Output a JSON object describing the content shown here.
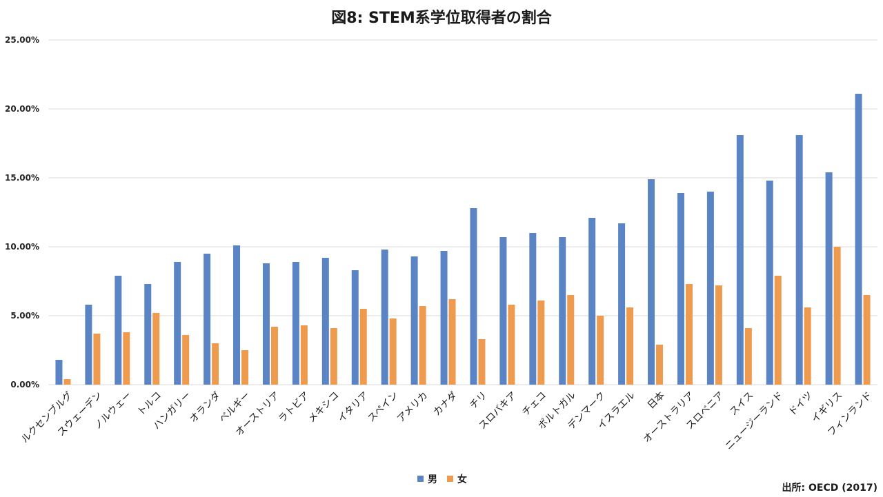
{
  "chart_data": {
    "type": "bar",
    "title": "図8: STEM系学位取得者の割合",
    "xlabel": "",
    "ylabel": "",
    "ylim": [
      0,
      25
    ],
    "yticks": [
      "0.00%",
      "5.00%",
      "10.00%",
      "15.00%",
      "20.00%",
      "25.00%"
    ],
    "grid": true,
    "legend_position": "bottom",
    "categories": [
      "ルクセンブルグ",
      "スウェーデン",
      "ノルウェー",
      "トルコ",
      "ハンガリー",
      "オランダ",
      "ベルギー",
      "オーストリア",
      "ラトビア",
      "メキシコ",
      "イタリア",
      "スペイン",
      "アメリカ",
      "カナダ",
      "チリ",
      "スロバキア",
      "チェコ",
      "ポルトガル",
      "デンマーク",
      "イスラエル",
      "日本",
      "オーストラリア",
      "スロベニア",
      "スイス",
      "ニュージーランド",
      "ドイツ",
      "イギリス",
      "フィンランド"
    ],
    "series": [
      {
        "name": "男",
        "color": "#5B84C4",
        "values": [
          1.8,
          5.8,
          7.9,
          7.3,
          8.9,
          9.5,
          10.1,
          8.8,
          8.9,
          9.2,
          8.3,
          9.8,
          9.3,
          9.7,
          12.8,
          10.7,
          11.0,
          10.7,
          12.1,
          11.7,
          14.9,
          13.9,
          14.0,
          18.1,
          14.8,
          18.1,
          15.4,
          21.1
        ]
      },
      {
        "name": "女",
        "color": "#EE9A4F",
        "values": [
          0.4,
          3.7,
          3.8,
          5.2,
          3.6,
          3.0,
          2.5,
          4.2,
          4.3,
          4.1,
          5.5,
          4.8,
          5.7,
          6.2,
          3.3,
          5.8,
          6.1,
          6.5,
          5.0,
          5.6,
          2.9,
          7.3,
          7.2,
          4.1,
          7.9,
          5.6,
          10.0,
          6.5
        ]
      }
    ],
    "source": "出所: OECD (2017)"
  }
}
